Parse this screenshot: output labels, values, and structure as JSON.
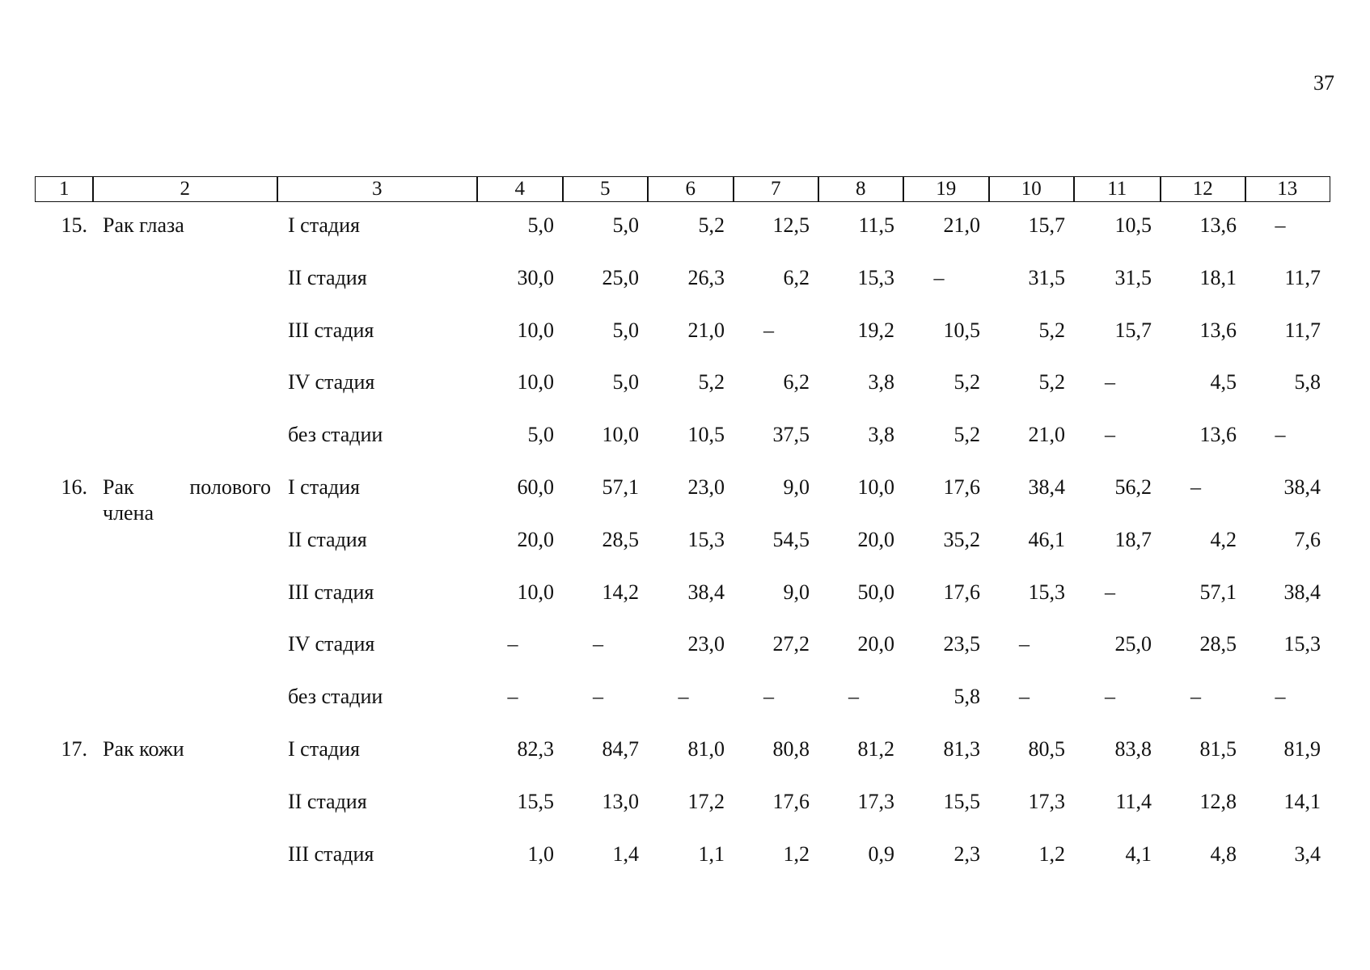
{
  "page_number": "37",
  "table": {
    "header": [
      "1",
      "2",
      "3",
      "4",
      "5",
      "6",
      "7",
      "8",
      "19",
      "10",
      "11",
      "12",
      "13"
    ],
    "groups": [
      {
        "number": "15.",
        "name": "Рак глаза",
        "rows": [
          {
            "stage": "I стадия",
            "values": [
              "5,0",
              "5,0",
              "5,2",
              "12,5",
              "11,5",
              "21,0",
              "15,7",
              "10,5",
              "13,6",
              "–"
            ]
          },
          {
            "stage": "II стадия",
            "values": [
              "30,0",
              "25,0",
              "26,3",
              "6,2",
              "15,3",
              "–",
              "31,5",
              "31,5",
              "18,1",
              "11,7"
            ]
          },
          {
            "stage": "III стадия",
            "values": [
              "10,0",
              "5,0",
              "21,0",
              "–",
              "19,2",
              "10,5",
              "5,2",
              "15,7",
              "13,6",
              "11,7"
            ]
          },
          {
            "stage": "IV стадия",
            "values": [
              "10,0",
              "5,0",
              "5,2",
              "6,2",
              "3,8",
              "5,2",
              "5,2",
              "–",
              "4,5",
              "5,8"
            ]
          },
          {
            "stage": "без стадии",
            "values": [
              "5,0",
              "10,0",
              "10,5",
              "37,5",
              "3,8",
              "5,2",
              "21,0",
              "–",
              "13,6",
              "–"
            ]
          }
        ]
      },
      {
        "number": "16.",
        "name": "Рак полового члена",
        "rows": [
          {
            "stage": "I стадия",
            "values": [
              "60,0",
              "57,1",
              "23,0",
              "9,0",
              "10,0",
              "17,6",
              "38,4",
              "56,2",
              "–",
              "38,4"
            ]
          },
          {
            "stage": "II стадия",
            "values": [
              "20,0",
              "28,5",
              "15,3",
              "54,5",
              "20,0",
              "35,2",
              "46,1",
              "18,7",
              "4,2",
              "7,6"
            ]
          },
          {
            "stage": "III стадия",
            "values": [
              "10,0",
              "14,2",
              "38,4",
              "9,0",
              "50,0",
              "17,6",
              "15,3",
              "–",
              "57,1",
              "38,4"
            ]
          },
          {
            "stage": "IV стадия",
            "values": [
              "–",
              "–",
              "23,0",
              "27,2",
              "20,0",
              "23,5",
              "–",
              "25,0",
              "28,5",
              "15,3"
            ]
          },
          {
            "stage": "без стадии",
            "values": [
              "–",
              "–",
              "–",
              "–",
              "–",
              "5,8",
              "–",
              "–",
              "–",
              "–"
            ]
          }
        ]
      },
      {
        "number": "17.",
        "name": "Рак кожи",
        "rows": [
          {
            "stage": "I стадия",
            "values": [
              "82,3",
              "84,7",
              "81,0",
              "80,8",
              "81,2",
              "81,3",
              "80,5",
              "83,8",
              "81,5",
              "81,9"
            ]
          },
          {
            "stage": "II стадия",
            "values": [
              "15,5",
              "13,0",
              "17,2",
              "17,6",
              "17,3",
              "15,5",
              "17,3",
              "11,4",
              "12,8",
              "14,1"
            ]
          },
          {
            "stage": "III стадия",
            "values": [
              "1,0",
              "1,4",
              "1,1",
              "1,2",
              "0,9",
              "2,3",
              "1,2",
              "4,1",
              "4,8",
              "3,4"
            ]
          }
        ]
      }
    ]
  }
}
